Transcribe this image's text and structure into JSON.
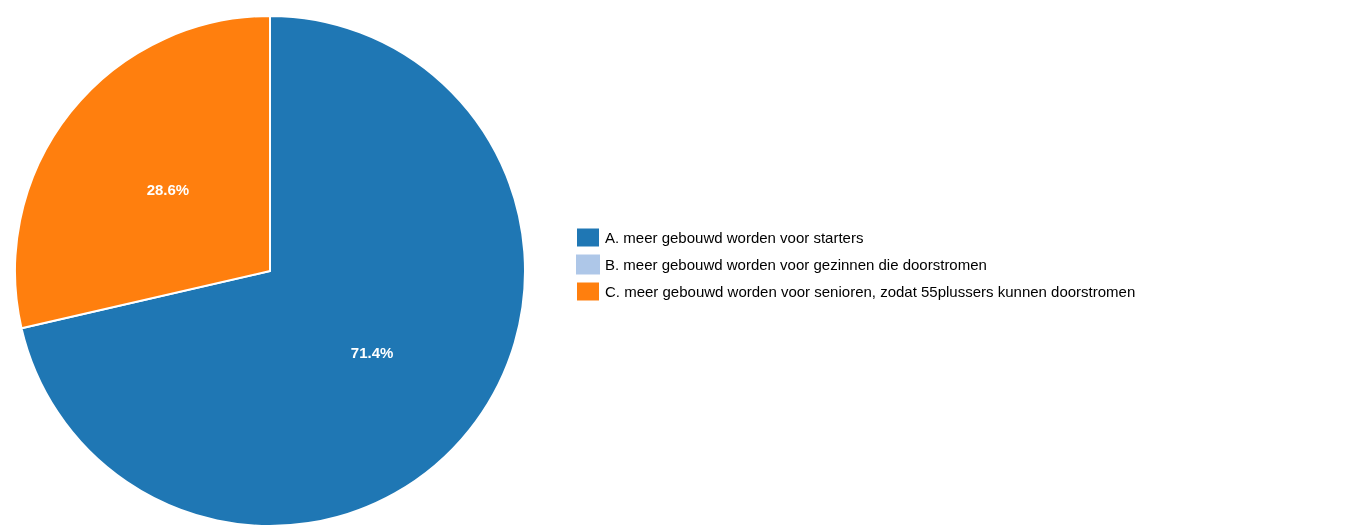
{
  "chart_data": {
    "type": "pie",
    "categories": [
      "A. meer gebouwd worden voor starters",
      "B. meer gebouwd worden voor gezinnen die doorstromen",
      "C. meer gebouwd worden voor senioren, zodat 55plussers kunnen doorstromen"
    ],
    "values": [
      71.4,
      0,
      28.6
    ],
    "colors": [
      "#1f77b4",
      "#aec7e8",
      "#ff7f0e"
    ],
    "value_labels": [
      "71.4%",
      null,
      "28.6%"
    ],
    "legend": "right"
  }
}
